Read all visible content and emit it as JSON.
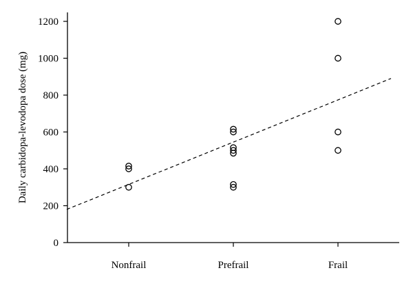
{
  "chart_data": {
    "type": "scatter",
    "title": "",
    "xlabel": "",
    "ylabel": "Daily carbidopa-levodopa dose (mg)",
    "categories": [
      "Nonfrail",
      "Prefrail",
      "Frail"
    ],
    "ylim": [
      0,
      1200
    ],
    "yticks": [
      0,
      200,
      400,
      600,
      800,
      1000,
      1200
    ],
    "grid": false,
    "points": [
      {
        "category": "Nonfrail",
        "y": 415
      },
      {
        "category": "Nonfrail",
        "y": 400
      },
      {
        "category": "Nonfrail",
        "y": 300
      },
      {
        "category": "Prefrail",
        "y": 615
      },
      {
        "category": "Prefrail",
        "y": 600
      },
      {
        "category": "Prefrail",
        "y": 515
      },
      {
        "category": "Prefrail",
        "y": 500
      },
      {
        "category": "Prefrail",
        "y": 485
      },
      {
        "category": "Prefrail",
        "y": 315
      },
      {
        "category": "Prefrail",
        "y": 300
      },
      {
        "category": "Frail",
        "y": 1200
      },
      {
        "category": "Frail",
        "y": 1000
      },
      {
        "category": "Frail",
        "y": 600
      },
      {
        "category": "Frail",
        "y": 500
      }
    ],
    "trend_line": {
      "style": "dashed",
      "y_at_left_edge": 180,
      "y_at_right_edge": 890
    }
  }
}
